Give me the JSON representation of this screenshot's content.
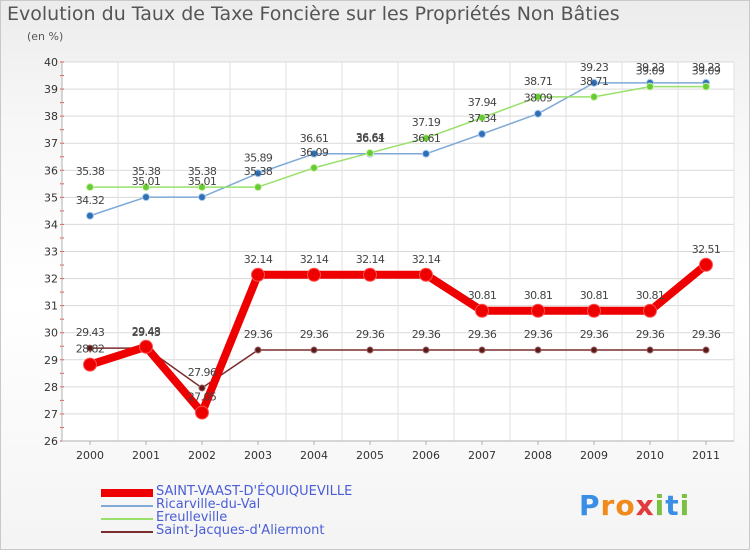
{
  "title": "Evolution du Taux de Taxe Foncière sur les Propriétés Non Bâties",
  "unit_label": "(en %)",
  "logo": {
    "letters": [
      "P",
      "r",
      "o",
      "x",
      "i",
      "t",
      "i"
    ],
    "colors": [
      "#3a8ee6",
      "#f08a1c",
      "#f08a1c",
      "#e23b3b",
      "#7bc043",
      "#3a8ee6",
      "#7bc043"
    ]
  },
  "chart_data": {
    "type": "line",
    "title": "Evolution du Taux de Taxe Foncière sur les Propriétés Non Bâties",
    "ylabel": "(en %)",
    "xlabel": "",
    "x": [
      "2000",
      "2001",
      "2002",
      "2003",
      "2004",
      "2005",
      "2006",
      "2007",
      "2008",
      "2009",
      "2010",
      "2011"
    ],
    "ylim": [
      26,
      40
    ],
    "yticks": [
      "26",
      "27",
      "28",
      "29",
      "30",
      "31",
      "32",
      "33",
      "34",
      "35",
      "36",
      "37",
      "38",
      "39",
      "40"
    ],
    "grid": true,
    "legend_position": "bottom-left",
    "series": [
      {
        "name": "SAINT-VAAST-D'ÉQUIQUEVILLE",
        "color": "#ee0000",
        "values": [
          28.82,
          29.48,
          27.05,
          32.14,
          32.14,
          32.14,
          32.14,
          30.81,
          30.81,
          30.81,
          30.81,
          32.51
        ],
        "labels": [
          "28.82",
          "29.48",
          "27.05",
          "32.14",
          "32.14",
          "32.14",
          "32.14",
          "30.81",
          "30.81",
          "30.81",
          "30.81",
          "32.51"
        ]
      },
      {
        "name": "Ricarville-du-Val",
        "color": "#7fa9d6",
        "values": [
          34.32,
          35.01,
          35.01,
          35.89,
          36.61,
          36.61,
          36.61,
          37.34,
          38.09,
          39.23,
          39.23,
          39.23
        ],
        "labels": [
          "34.32",
          "35.01",
          "35.01",
          "35.89",
          "36.61",
          "36.61",
          "36.61",
          "37.34",
          "38.09",
          "39.23",
          "39.23",
          "39.23"
        ]
      },
      {
        "name": "Ereulleville",
        "color": "#99e06a",
        "values": [
          35.38,
          35.38,
          35.38,
          35.38,
          36.09,
          36.64,
          37.19,
          37.94,
          38.71,
          38.71,
          39.09,
          39.09
        ],
        "labels": [
          "35.38",
          "35.38",
          "35.38",
          "35.38",
          "36.09",
          "36.64",
          "37.19",
          "37.94",
          "38.71",
          "38.71",
          "39.09",
          "39.09"
        ]
      },
      {
        "name": "Saint-Jacques-d'Aliermont",
        "color": "#7a2d2d",
        "values": [
          29.43,
          29.43,
          27.96,
          29.36,
          29.36,
          29.36,
          29.36,
          29.36,
          29.36,
          29.36,
          29.36,
          29.36
        ],
        "labels": [
          "29.43",
          "29.43",
          "27.96",
          "29.36",
          "29.36",
          "29.36",
          "29.36",
          "29.36",
          "29.36",
          "29.36",
          "29.36",
          "29.36"
        ]
      }
    ]
  }
}
